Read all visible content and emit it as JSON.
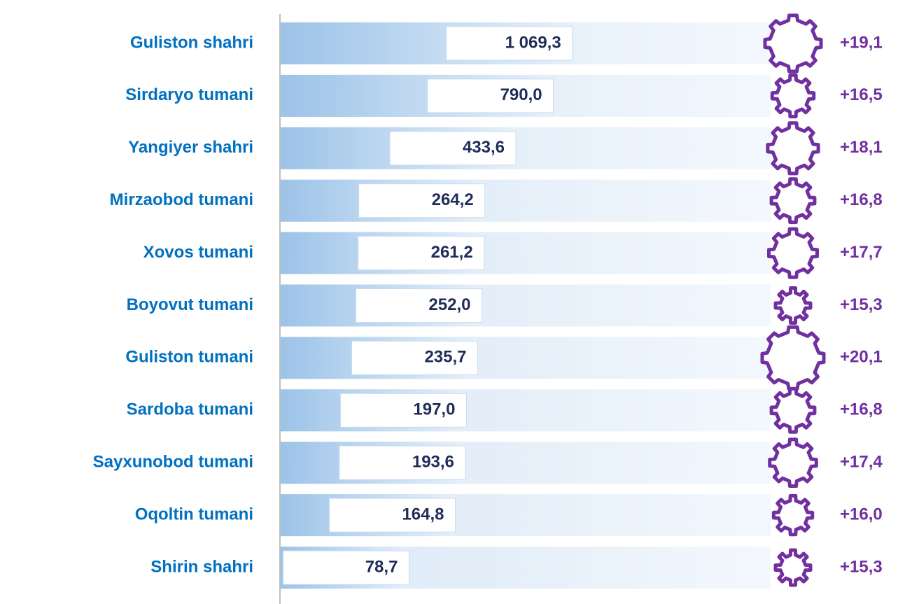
{
  "chart_data": {
    "type": "bar",
    "categories": [
      "Guliston shahri",
      "Sirdaryo tumani",
      "Yangiyer shahri",
      "Mirzaobod tumani",
      "Xovos tumani",
      "Boyovut tumani",
      "Guliston tumani",
      "Sardoba tumani",
      "Sayxunobod tumani",
      "Oqoltin tumani",
      "Shirin shahri"
    ],
    "series": [
      {
        "color": "#5b9bd5",
        "values": [
          1069.3,
          790.0,
          433.6,
          264.2,
          261.2,
          252.0,
          235.7,
          197.0,
          193.6,
          164.8,
          78.7
        ],
        "value_labels": [
          "1 069,3",
          "790,0",
          "433,6",
          "264,2",
          "261,2",
          "252,0",
          "235,7",
          "197,0",
          "193,6",
          "164,8",
          "78,7"
        ]
      },
      {
        "color": "#7030a0",
        "values": [
          19.1,
          16.5,
          18.1,
          16.8,
          17.7,
          15.3,
          20.1,
          16.8,
          17.4,
          16.0,
          15.3
        ],
        "value_labels": [
          "+19,1",
          "+16,5",
          "+18,1",
          "+16,8",
          "+17,7",
          "+15,3",
          "+20,1",
          "+16,8",
          "+17,4",
          "+16,0",
          "+15,3"
        ]
      }
    ],
    "log_scale": true,
    "xlim": [
      10,
      1200
    ]
  }
}
